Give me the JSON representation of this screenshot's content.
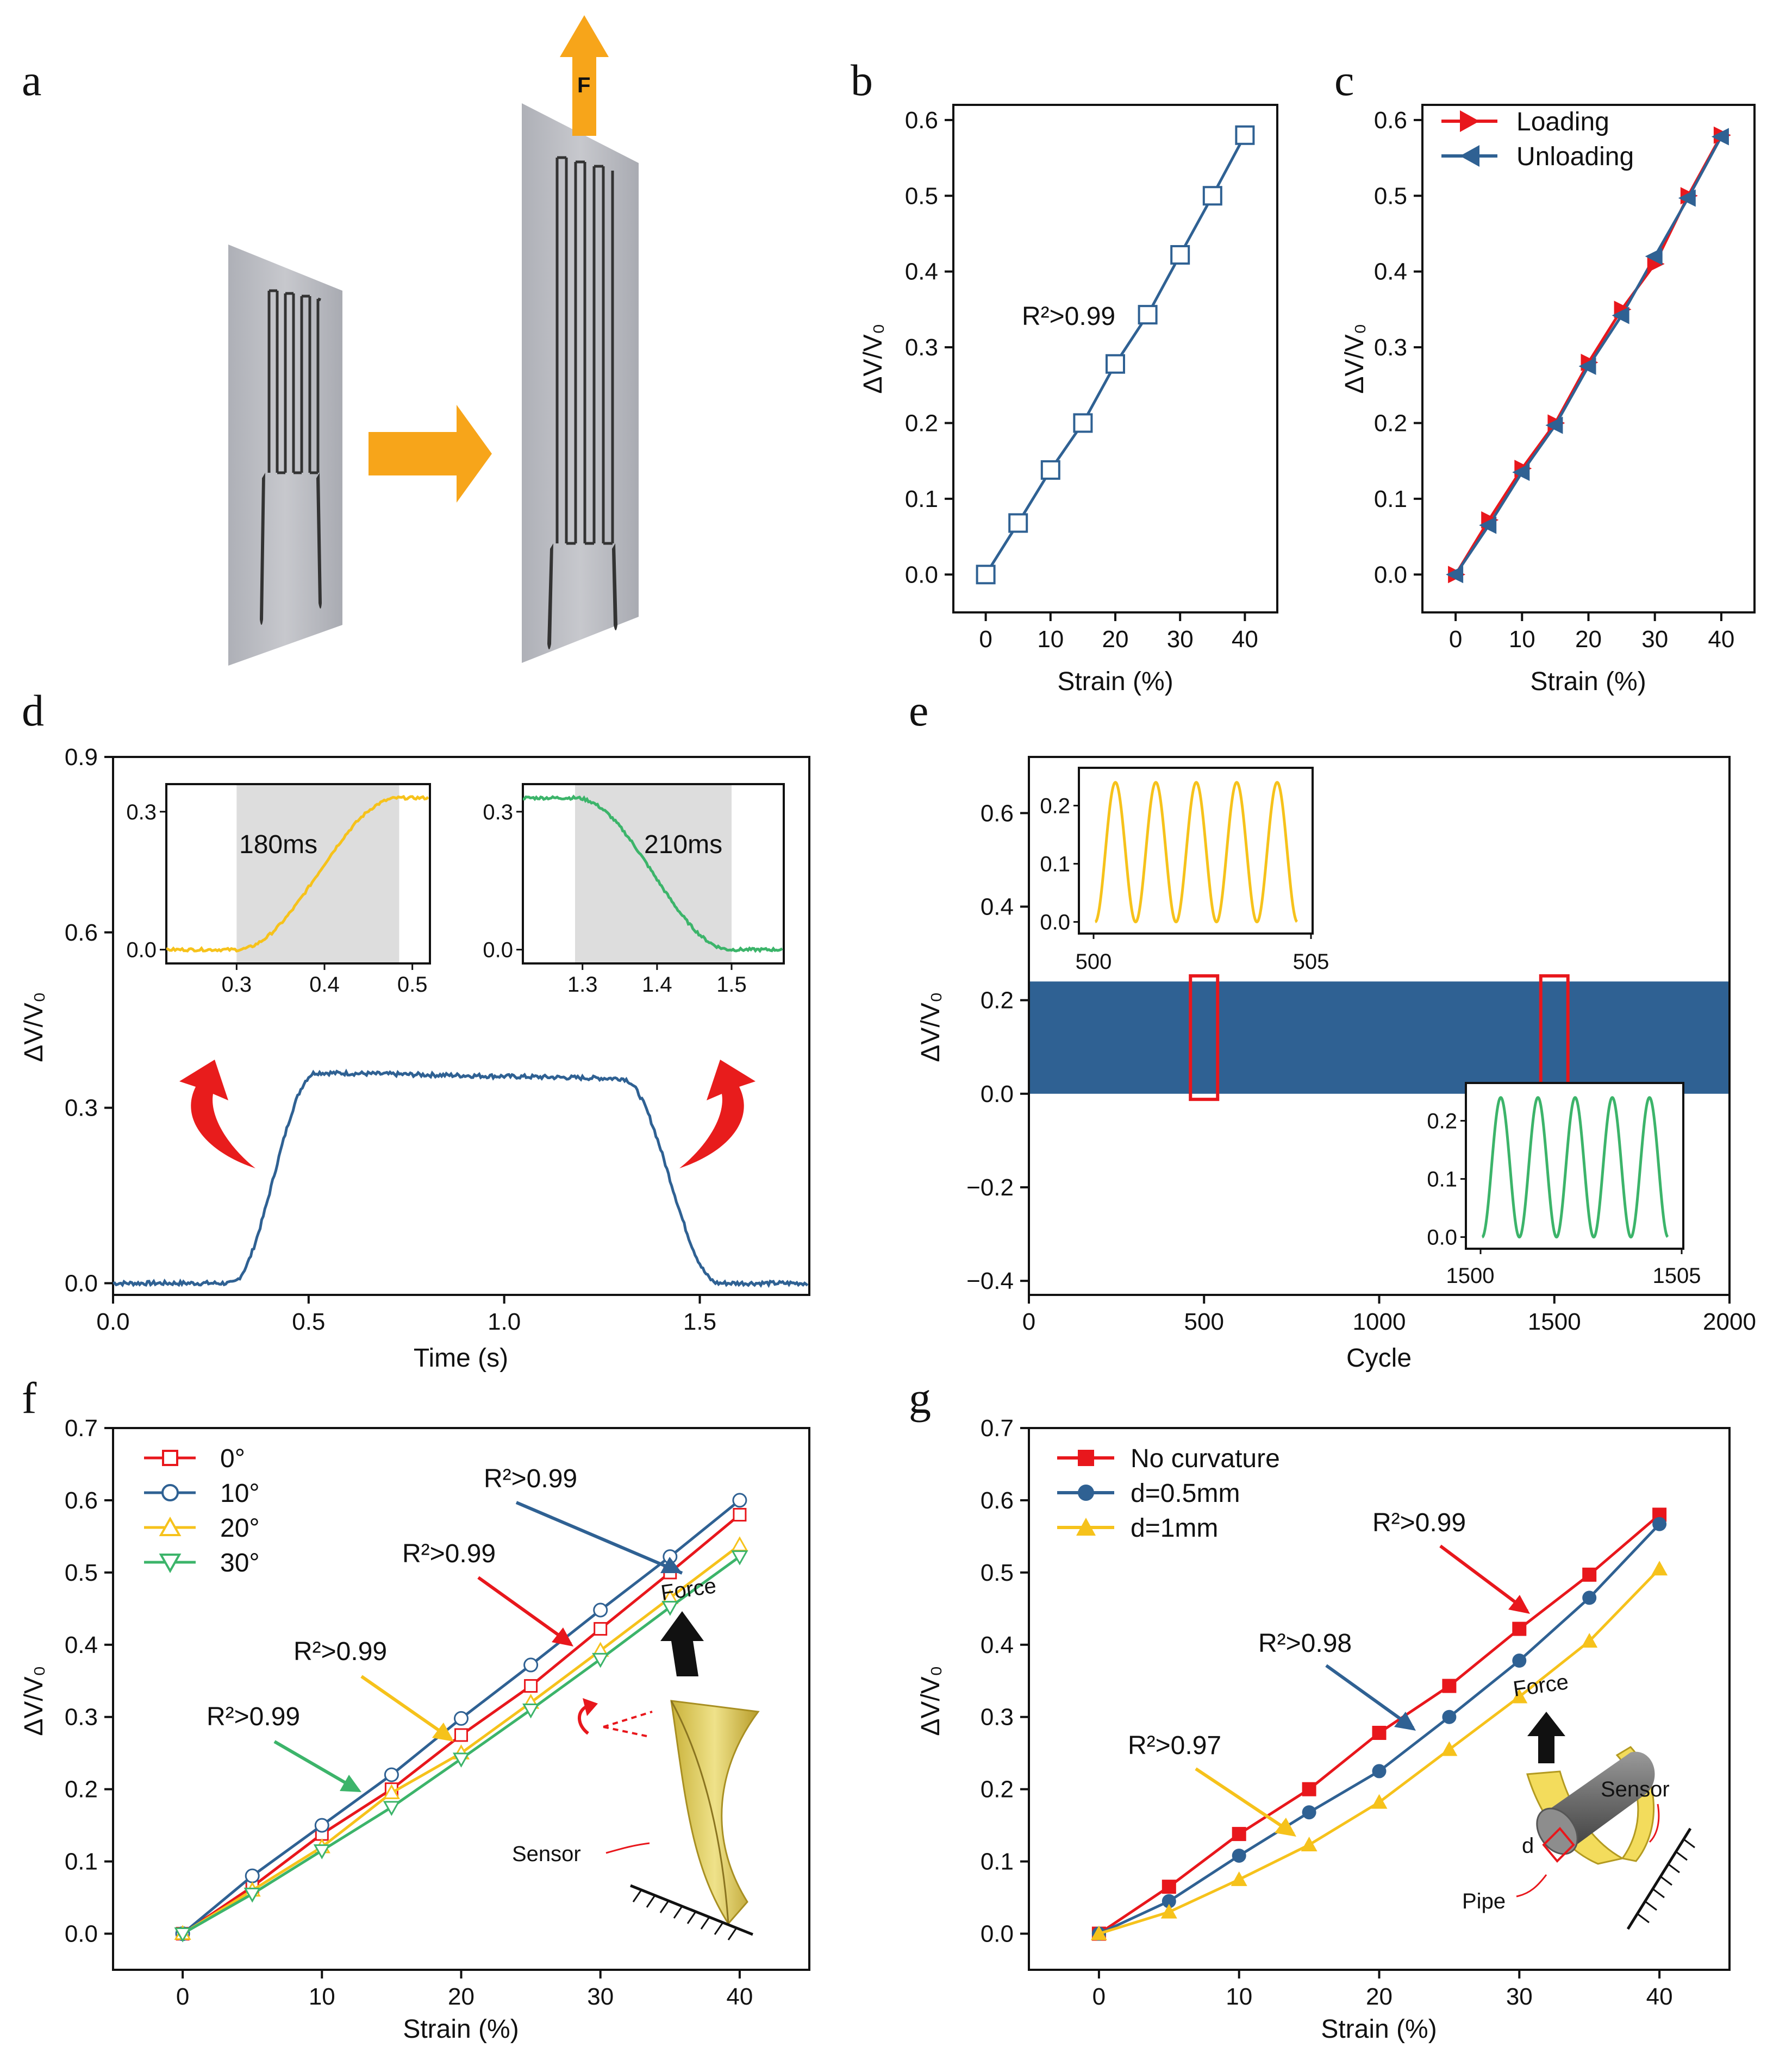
{
  "colors": {
    "red": "#e8171c",
    "blue": "#2f6193",
    "yellow": "#f6c21b",
    "green": "#3cb46a",
    "orange": "#f7a51a",
    "axis": "#111111",
    "shade": "#dddddd",
    "boxred": "#e8171c"
  },
  "panel_a": {
    "letter": "a",
    "icons": [
      "sensor-unstretched-icon",
      "stretch-arrow-icon",
      "sensor-stretched-icon",
      "pull-arrow-icon"
    ]
  },
  "chart_data": [
    {
      "id": "b",
      "letter": "b",
      "type": "scatter",
      "x": [
        0,
        5,
        10,
        15,
        20,
        25,
        30,
        35,
        40
      ],
      "y": [
        0.0,
        0.068,
        0.138,
        0.2,
        0.278,
        0.343,
        0.422,
        0.5,
        0.58
      ],
      "xlim": [
        -5,
        45
      ],
      "ylim": [
        -0.05,
        0.62
      ],
      "xticks": [
        "0",
        "10",
        "20",
        "30",
        "40"
      ],
      "yticks": [
        "0.0",
        "0.1",
        "0.2",
        "0.3",
        "0.4",
        "0.5",
        "0.6"
      ],
      "xlabel": "Strain (%)",
      "ylabel": "ΔV/V₀",
      "annotation": "R²>0.99"
    },
    {
      "id": "c",
      "letter": "c",
      "type": "line",
      "x": [
        0,
        5,
        10,
        15,
        20,
        25,
        30,
        35,
        40
      ],
      "series": [
        {
          "name": "Loading",
          "values": [
            0.0,
            0.072,
            0.14,
            0.2,
            0.28,
            0.35,
            0.41,
            0.5,
            0.58
          ]
        },
        {
          "name": "Unloading",
          "values": [
            0.0,
            0.065,
            0.135,
            0.197,
            0.275,
            0.342,
            0.42,
            0.497,
            0.578
          ]
        }
      ],
      "xlim": [
        -5,
        45
      ],
      "ylim": [
        -0.05,
        0.62
      ],
      "xticks": [
        "0",
        "10",
        "20",
        "30",
        "40"
      ],
      "yticks": [
        "0.0",
        "0.1",
        "0.2",
        "0.3",
        "0.4",
        "0.5",
        "0.6"
      ],
      "xlabel": "Strain (%)",
      "ylabel": "ΔV/V₀",
      "legend": "top-left"
    },
    {
      "id": "d",
      "letter": "d",
      "type": "line",
      "description_series": "step response",
      "response": {
        "baseline": 0.0,
        "plateau": 0.36,
        "rise_start": 0.3,
        "rise_end": 0.52,
        "fall_start": 1.3,
        "fall_end": 1.55
      },
      "xlim": [
        0,
        1.78
      ],
      "ylim": [
        -0.02,
        0.9
      ],
      "xticks": [
        "0.0",
        "0.5",
        "1.0",
        "1.5"
      ],
      "yticks": [
        "0.0",
        "0.3",
        "0.6",
        "0.9"
      ],
      "xlabel": "Time (s)",
      "ylabel": "ΔV/V₀",
      "insets": [
        {
          "label": "180ms",
          "xlim": [
            0.22,
            0.52
          ],
          "ylim": [
            -0.03,
            0.36
          ],
          "xticks": [
            "0.3",
            "0.4",
            "0.5"
          ],
          "yticks": [
            "0.0",
            "0.3"
          ],
          "shade": [
            0.3,
            0.485
          ],
          "curve": "rise"
        },
        {
          "label": "210ms",
          "xlim": [
            1.22,
            1.57
          ],
          "ylim": [
            -0.03,
            0.36
          ],
          "xticks": [
            "1.3",
            "1.4",
            "1.5"
          ],
          "yticks": [
            "0.0",
            "0.3"
          ],
          "shade": [
            1.29,
            1.5
          ],
          "curve": "fall"
        }
      ]
    },
    {
      "id": "e",
      "letter": "e",
      "type": "line",
      "cycles": 2000,
      "amplitude": [
        0.0,
        0.24
      ],
      "xlim": [
        0,
        2000
      ],
      "ylim": [
        -0.43,
        0.72
      ],
      "xticks": [
        "0",
        "500",
        "1000",
        "1500",
        "2000"
      ],
      "yticks": [
        "−0.4",
        "−0.2",
        "0.0",
        "0.2",
        "0.4",
        "0.6"
      ],
      "xlabel": "Cycle",
      "ylabel": "ΔV/V₀",
      "highlight_cycles": [
        500,
        1500
      ],
      "insets": [
        {
          "xticks": [
            "500",
            "505"
          ],
          "yticks": [
            "0.0",
            "0.1",
            "0.2"
          ],
          "periods": 5
        },
        {
          "xticks": [
            "1500",
            "1505"
          ],
          "yticks": [
            "0.0",
            "0.1",
            "0.2"
          ],
          "periods": 5
        }
      ]
    },
    {
      "id": "f",
      "letter": "f",
      "type": "line",
      "x": [
        0,
        5,
        10,
        15,
        20,
        25,
        30,
        35,
        40
      ],
      "series": [
        {
          "name": "0°",
          "values": [
            0.0,
            0.065,
            0.138,
            0.2,
            0.275,
            0.343,
            0.422,
            0.5,
            0.58
          ]
        },
        {
          "name": "10°",
          "values": [
            0.0,
            0.08,
            0.15,
            0.22,
            0.298,
            0.372,
            0.448,
            0.522,
            0.6
          ]
        },
        {
          "name": "20°",
          "values": [
            0.0,
            0.06,
            0.12,
            0.195,
            0.25,
            0.32,
            0.392,
            0.465,
            0.538
          ]
        },
        {
          "name": "30°",
          "values": [
            0.0,
            0.055,
            0.115,
            0.175,
            0.242,
            0.31,
            0.38,
            0.452,
            0.522
          ]
        }
      ],
      "xlim": [
        -5,
        45
      ],
      "ylim": [
        -0.05,
        0.7
      ],
      "xticks": [
        "0",
        "10",
        "20",
        "30",
        "40"
      ],
      "yticks": [
        "0.0",
        "0.1",
        "0.2",
        "0.3",
        "0.4",
        "0.5",
        "0.6",
        "0.7"
      ],
      "xlabel": "Strain (%)",
      "ylabel": "ΔV/V₀",
      "annotations": [
        "R²>0.99",
        "R²>0.99",
        "R²>0.99",
        "R²>0.99"
      ],
      "diagram_labels": {
        "force": "Force",
        "sensor": "Sensor"
      }
    },
    {
      "id": "g",
      "letter": "g",
      "type": "line",
      "x": [
        0,
        5,
        10,
        15,
        20,
        25,
        30,
        35,
        40
      ],
      "series": [
        {
          "name": "No curvature",
          "values": [
            0.0,
            0.065,
            0.138,
            0.2,
            0.278,
            0.343,
            0.422,
            0.497,
            0.58
          ]
        },
        {
          "name": "d=0.5mm",
          "values": [
            0.0,
            0.045,
            0.108,
            0.168,
            0.225,
            0.3,
            0.378,
            0.465,
            0.567
          ]
        },
        {
          "name": "d=1mm",
          "values": [
            0.0,
            0.03,
            0.075,
            0.123,
            0.182,
            0.255,
            0.328,
            0.405,
            0.505
          ]
        }
      ],
      "xlim": [
        -5,
        45
      ],
      "ylim": [
        -0.05,
        0.7
      ],
      "xticks": [
        "0",
        "10",
        "20",
        "30",
        "40"
      ],
      "yticks": [
        "0.0",
        "0.1",
        "0.2",
        "0.3",
        "0.4",
        "0.5",
        "0.6",
        "0.7"
      ],
      "xlabel": "Strain (%)",
      "ylabel": "ΔV/V₀",
      "annotations": [
        "R²>0.99",
        "R²>0.98",
        "R²>0.97"
      ],
      "diagram_labels": {
        "force": "Force",
        "sensor": "Sensor",
        "pipe": "Pipe",
        "d": "d"
      }
    }
  ]
}
